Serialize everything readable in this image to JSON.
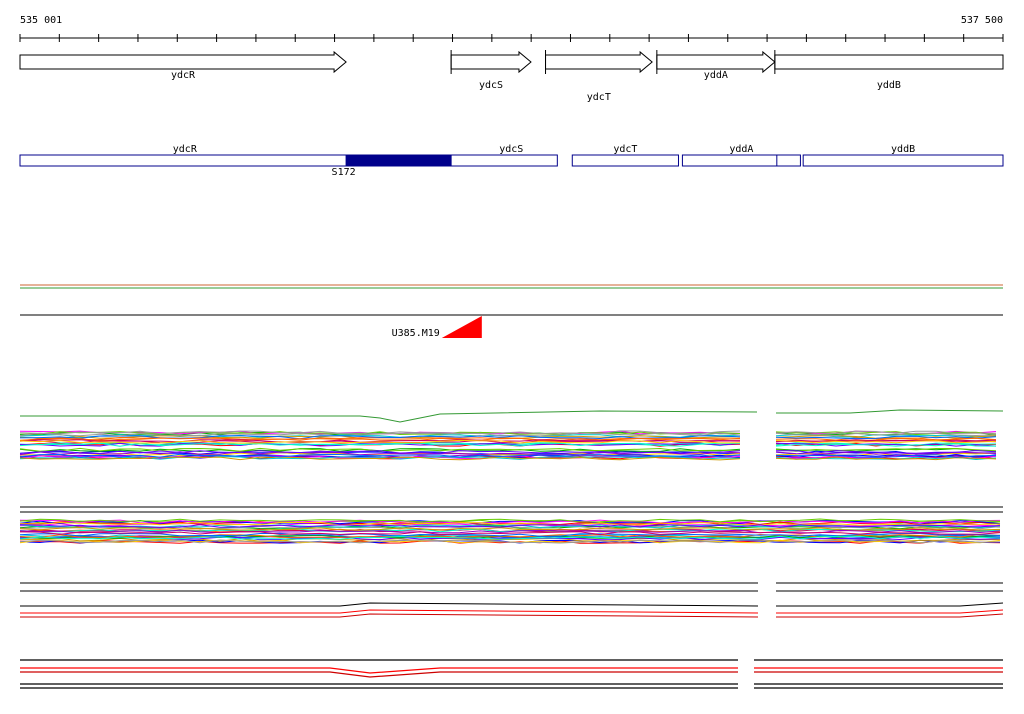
{
  "ruler": {
    "start_label": "535 001",
    "end_label": "537 500",
    "start_bp": 535001,
    "end_bp": 537500
  },
  "genes": [
    {
      "name": "ydcR",
      "start_bp": 535001,
      "end_bp": 535830,
      "strand": "+"
    },
    {
      "name": "ydcS",
      "start_bp": 536097,
      "end_bp": 536300,
      "strand": "+"
    },
    {
      "name": "ydcT",
      "start_bp": 536337,
      "end_bp": 536608,
      "strand": "+"
    },
    {
      "name": "yddA",
      "start_bp": 536620,
      "end_bp": 536920,
      "strand": "+"
    },
    {
      "name": "yddB",
      "start_bp": 536920,
      "end_bp": 537500,
      "strand": "+"
    }
  ],
  "transcripts": [
    {
      "name": "ydcR",
      "start_bp": 535001,
      "end_bp": 536367
    },
    {
      "name": "ydcS",
      "start_bp": 535830,
      "end_bp": 536367
    },
    {
      "name": "ydcT",
      "start_bp": 536405,
      "end_bp": 536675
    },
    {
      "name": "yddA",
      "start_bp": 536685,
      "end_bp": 536985
    },
    {
      "name": "yddB",
      "start_bp": 536992,
      "end_bp": 537500
    }
  ],
  "feature": {
    "name": "S172",
    "start_bp": 535830,
    "end_bp": 536097,
    "color": "#00008b"
  },
  "marker": {
    "name": "U385.M19",
    "bp": 536175,
    "color": "#ff0000"
  },
  "colors": {
    "transcript_outline": "#00008b",
    "feature_fill": "#00008b",
    "marker": "#ff0000",
    "track_line_orange": "#cc6633",
    "track_line_green": "#339933"
  }
}
